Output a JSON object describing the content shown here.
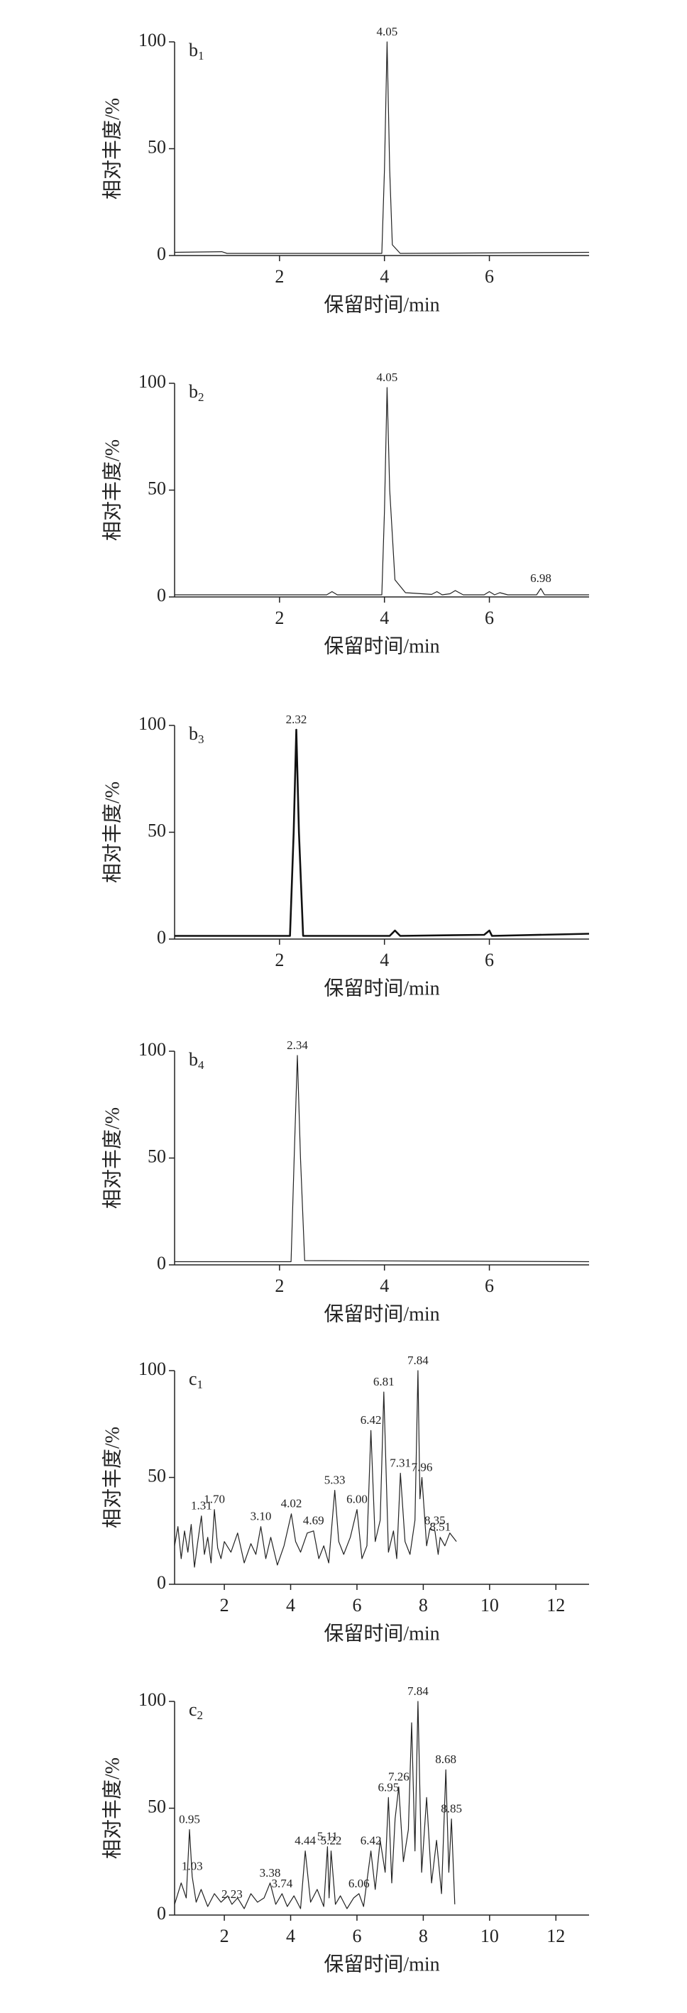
{
  "chart_data": [
    {
      "type": "line",
      "panel_label": "b1",
      "xlabel": "保留时间/min",
      "ylabel": "相对丰度/%",
      "xlim": [
        0,
        7.9
      ],
      "xticks": [
        2,
        4,
        6
      ],
      "ylim": [
        0,
        100
      ],
      "yticks": [
        0,
        50,
        100
      ],
      "series": [
        {
          "color": "#222222",
          "line_width": 1.2,
          "x": [
            0,
            0.9,
            1.0,
            3.95,
            4.0,
            4.05,
            4.1,
            4.15,
            4.3,
            7.9
          ],
          "values": [
            1.5,
            1.8,
            1,
            1,
            40,
            100,
            40,
            5,
            1,
            1.5
          ]
        }
      ],
      "peaks": [
        {
          "label": "4.05",
          "x": 4.05,
          "y": 100
        }
      ]
    },
    {
      "type": "line",
      "panel_label": "b2",
      "xlabel": "保留时间/min",
      "ylabel": "相对丰度/%",
      "xlim": [
        0,
        7.9
      ],
      "xticks": [
        2,
        4,
        6
      ],
      "ylim": [
        0,
        100
      ],
      "yticks": [
        0,
        50,
        100
      ],
      "series": [
        {
          "color": "#222222",
          "line_width": 1.2,
          "x": [
            0,
            2.9,
            3.0,
            3.1,
            3.95,
            4.0,
            4.05,
            4.1,
            4.2,
            4.4,
            4.9,
            5.0,
            5.1,
            5.25,
            5.35,
            5.5,
            5.9,
            6.0,
            6.1,
            6.2,
            6.35,
            6.9,
            6.98,
            7.05,
            7.9
          ],
          "values": [
            1,
            1,
            2.5,
            1,
            1,
            40,
            98,
            50,
            8,
            2,
            1.2,
            2.5,
            1,
            1.5,
            3,
            1,
            1,
            2.5,
            1,
            2,
            1,
            1,
            4,
            1,
            1
          ]
        }
      ],
      "peaks": [
        {
          "label": "4.05",
          "x": 4.05,
          "y": 98
        },
        {
          "label": "6.98",
          "x": 6.98,
          "y": 4
        }
      ]
    },
    {
      "type": "line",
      "panel_label": "b3",
      "xlabel": "保留时间/min",
      "ylabel": "相对丰度/%",
      "xlim": [
        0,
        7.9
      ],
      "xticks": [
        2,
        4,
        6
      ],
      "ylim": [
        0,
        100
      ],
      "yticks": [
        0,
        50,
        100
      ],
      "series": [
        {
          "color": "#111111",
          "line_width": 2.6,
          "x": [
            0,
            2.2,
            2.27,
            2.32,
            2.37,
            2.45,
            4.1,
            4.2,
            4.3,
            5.9,
            6.0,
            6.05,
            7.9
          ],
          "values": [
            1.5,
            1.5,
            50,
            98,
            50,
            1.5,
            1.5,
            4,
            1.5,
            2,
            4,
            1.5,
            2.5
          ]
        }
      ],
      "peaks": [
        {
          "label": "2.32",
          "x": 2.32,
          "y": 98
        }
      ]
    },
    {
      "type": "line",
      "panel_label": "b4",
      "xlabel": "保留时间/min",
      "ylabel": "相对丰度/%",
      "xlim": [
        0,
        7.9
      ],
      "xticks": [
        2,
        4,
        6
      ],
      "ylim": [
        0,
        100
      ],
      "yticks": [
        0,
        50,
        100
      ],
      "series": [
        {
          "color": "#222222",
          "line_width": 1.2,
          "x": [
            0,
            2.22,
            2.28,
            2.34,
            2.4,
            2.48,
            7.9
          ],
          "values": [
            1.5,
            1.5,
            50,
            98,
            50,
            2,
            1.5
          ]
        }
      ],
      "peaks": [
        {
          "label": "2.34",
          "x": 2.34,
          "y": 98
        }
      ]
    },
    {
      "type": "line",
      "panel_label": "c1",
      "xlabel": "保留时间/min",
      "ylabel": "相对丰度/%",
      "xlim": [
        0.5,
        13
      ],
      "xticks": [
        2,
        4,
        6,
        8,
        10,
        12
      ],
      "ylim": [
        0,
        100
      ],
      "yticks": [
        0,
        50,
        100
      ],
      "series": [
        {
          "color": "#222222",
          "line_width": 1.2,
          "x": [
            0.5,
            0.6,
            0.7,
            0.8,
            0.9,
            1.0,
            1.1,
            1.2,
            1.31,
            1.4,
            1.5,
            1.6,
            1.7,
            1.8,
            1.9,
            2.0,
            2.2,
            2.4,
            2.6,
            2.8,
            2.95,
            3.1,
            3.25,
            3.4,
            3.6,
            3.8,
            4.02,
            4.15,
            4.3,
            4.5,
            4.69,
            4.85,
            5.0,
            5.15,
            5.33,
            5.45,
            5.6,
            5.8,
            6.0,
            6.15,
            6.3,
            6.42,
            6.55,
            6.7,
            6.81,
            6.95,
            7.1,
            7.2,
            7.31,
            7.45,
            7.6,
            7.75,
            7.84,
            7.9,
            7.96,
            8.1,
            8.2,
            8.35,
            8.45,
            8.51,
            8.65,
            8.8,
            9.0
          ],
          "values": [
            18,
            27,
            12,
            25,
            15,
            28,
            8,
            20,
            32,
            14,
            22,
            10,
            35,
            17,
            12,
            20,
            15,
            24,
            10,
            19,
            14,
            27,
            12,
            22,
            9,
            18,
            33,
            20,
            15,
            24,
            25,
            12,
            18,
            10,
            44,
            20,
            14,
            22,
            35,
            12,
            18,
            72,
            20,
            30,
            90,
            15,
            25,
            12,
            52,
            20,
            14,
            30,
            100,
            40,
            50,
            18,
            26,
            25,
            14,
            22,
            18,
            24,
            20
          ]
        }
      ],
      "peaks": [
        {
          "label": "1.31",
          "x": 1.31,
          "y": 32
        },
        {
          "label": "1.70",
          "x": 1.7,
          "y": 35
        },
        {
          "label": "3.10",
          "x": 3.1,
          "y": 27
        },
        {
          "label": "4.02",
          "x": 4.02,
          "y": 33
        },
        {
          "label": "4.69",
          "x": 4.69,
          "y": 25
        },
        {
          "label": "5.33",
          "x": 5.33,
          "y": 44
        },
        {
          "label": "6.00",
          "x": 6.0,
          "y": 35
        },
        {
          "label": "6.42",
          "x": 6.42,
          "y": 72
        },
        {
          "label": "6.81",
          "x": 6.81,
          "y": 90
        },
        {
          "label": "7.31",
          "x": 7.31,
          "y": 52
        },
        {
          "label": "7.84",
          "x": 7.84,
          "y": 100
        },
        {
          "label": "7.96",
          "x": 7.96,
          "y": 50
        },
        {
          "label": "8.35",
          "x": 8.35,
          "y": 25
        },
        {
          "label": "8.51",
          "x": 8.51,
          "y": 22
        }
      ]
    },
    {
      "type": "line",
      "panel_label": "c2",
      "xlabel": "保留时间/min",
      "ylabel": "相对丰度/%",
      "xlim": [
        0.5,
        13
      ],
      "xticks": [
        2,
        4,
        6,
        8,
        10,
        12
      ],
      "ylim": [
        0,
        100
      ],
      "yticks": [
        0,
        50,
        100
      ],
      "series": [
        {
          "color": "#222222",
          "line_width": 1.2,
          "x": [
            0.5,
            0.7,
            0.85,
            0.95,
            1.03,
            1.15,
            1.3,
            1.5,
            1.7,
            1.9,
            2.1,
            2.23,
            2.4,
            2.6,
            2.8,
            3.0,
            3.2,
            3.38,
            3.55,
            3.74,
            3.9,
            4.1,
            4.3,
            4.44,
            4.6,
            4.8,
            5.0,
            5.11,
            5.16,
            5.22,
            5.35,
            5.5,
            5.7,
            5.9,
            6.06,
            6.2,
            6.42,
            6.55,
            6.7,
            6.85,
            6.95,
            7.05,
            7.15,
            7.26,
            7.4,
            7.55,
            7.65,
            7.75,
            7.84,
            7.95,
            8.1,
            8.25,
            8.4,
            8.55,
            8.68,
            8.77,
            8.85,
            8.95
          ],
          "values": [
            5,
            15,
            8,
            40,
            18,
            6,
            12,
            4,
            10,
            6,
            9,
            5,
            8,
            3,
            10,
            6,
            8,
            15,
            5,
            10,
            4,
            9,
            3,
            30,
            6,
            12,
            4,
            32,
            8,
            30,
            5,
            9,
            3,
            8,
            10,
            4,
            30,
            12,
            35,
            20,
            55,
            15,
            45,
            60,
            25,
            40,
            90,
            30,
            100,
            20,
            55,
            15,
            35,
            10,
            68,
            20,
            45,
            5
          ]
        }
      ],
      "peaks": [
        {
          "label": "0.95",
          "x": 0.95,
          "y": 40
        },
        {
          "label": "1.03",
          "x": 1.03,
          "y": 18
        },
        {
          "label": "2.23",
          "x": 2.23,
          "y": 5
        },
        {
          "label": "3.38",
          "x": 3.38,
          "y": 15
        },
        {
          "label": "3.74",
          "x": 3.74,
          "y": 10
        },
        {
          "label": "4.44",
          "x": 4.44,
          "y": 30
        },
        {
          "label": "5.11",
          "x": 5.11,
          "y": 32
        },
        {
          "label": "5.22",
          "x": 5.22,
          "y": 30
        },
        {
          "label": "6.06",
          "x": 6.06,
          "y": 10
        },
        {
          "label": "6.42",
          "x": 6.42,
          "y": 30
        },
        {
          "label": "6.95",
          "x": 6.95,
          "y": 55
        },
        {
          "label": "7.26",
          "x": 7.26,
          "y": 60
        },
        {
          "label": "7.84",
          "x": 7.84,
          "y": 100
        },
        {
          "label": "8.68",
          "x": 8.68,
          "y": 68
        },
        {
          "label": "8.85",
          "x": 8.85,
          "y": 45
        }
      ]
    }
  ]
}
